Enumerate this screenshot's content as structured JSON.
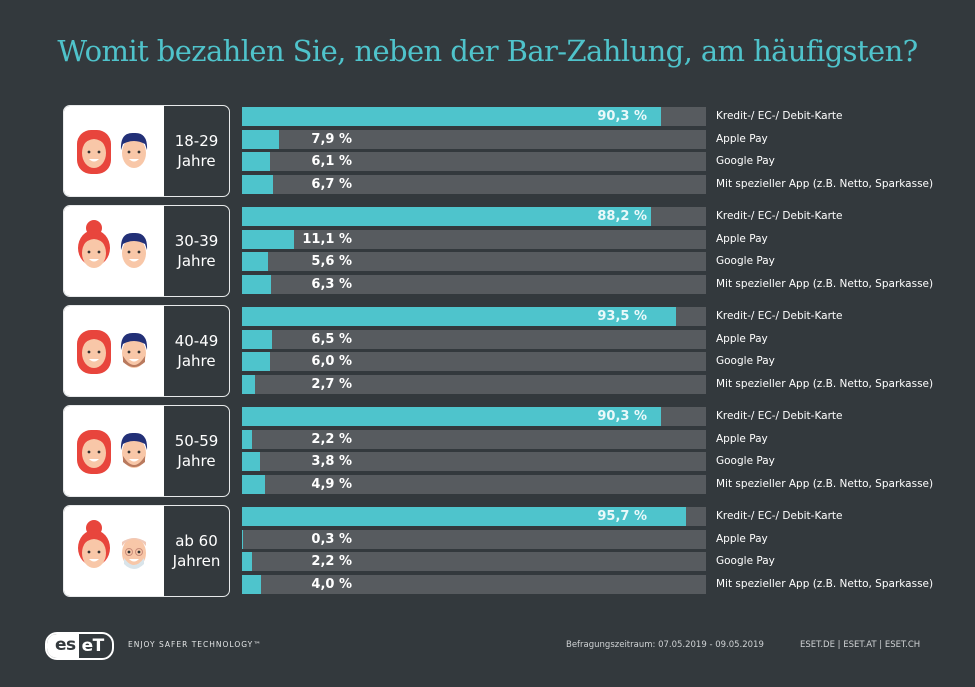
{
  "title": "Womit bezahlen Sie, neben der Bar-Zahlung, am häufigsten?",
  "colors": {
    "background": "#33393d",
    "accent": "#4ec4cc",
    "track": "#575b5f",
    "title": "#4fc3cb"
  },
  "chart_data": {
    "type": "bar",
    "orientation": "horizontal",
    "title": "Womit bezahlen Sie, neben der Bar-Zahlung, am häufigsten?",
    "categories": [
      "Kredit-/ EC-/ Debit-Karte",
      "Apple Pay",
      "Google Pay",
      "Mit spezieller App (z.B. Netto, Sparkasse)"
    ],
    "xlim": [
      0,
      100
    ],
    "unit": "%",
    "groups": [
      {
        "label_line1": "18-29",
        "label_line2": "Jahre",
        "values": [
          90.3,
          7.9,
          6.1,
          6.7
        ],
        "labels": [
          "90,3 %",
          "7,9 %",
          "6,1 %",
          "6,7 %"
        ]
      },
      {
        "label_line1": "30-39",
        "label_line2": "Jahre",
        "values": [
          88.2,
          11.1,
          5.6,
          6.3
        ],
        "labels": [
          "88,2 %",
          "11,1 %",
          "5,6 %",
          "6,3 %"
        ]
      },
      {
        "label_line1": "40-49",
        "label_line2": "Jahre",
        "values": [
          93.5,
          6.5,
          6.0,
          2.7
        ],
        "labels": [
          "93,5 %",
          "6,5 %",
          "6,0 %",
          "2,7 %"
        ]
      },
      {
        "label_line1": "50-59",
        "label_line2": "Jahre",
        "values": [
          90.3,
          2.2,
          3.8,
          4.9
        ],
        "labels": [
          "90,3 %",
          "2,2 %",
          "3,8 %",
          "4,9 %"
        ]
      },
      {
        "label_line1": "ab 60",
        "label_line2": "Jahren",
        "values": [
          95.7,
          0.3,
          2.2,
          4.0
        ],
        "labels": [
          "95,7 %",
          "0,3 %",
          "2,2 %",
          "4,0 %"
        ]
      }
    ]
  },
  "footer": {
    "logo_left": "es",
    "logo_right": "eT",
    "tagline": "ENJOY SAFER TECHNOLOGY™",
    "survey_period": "Befragungszeitraum: 07.05.2019 - 09.05.2019",
    "links": "ESET.DE | ESET.AT | ESET.CH"
  }
}
